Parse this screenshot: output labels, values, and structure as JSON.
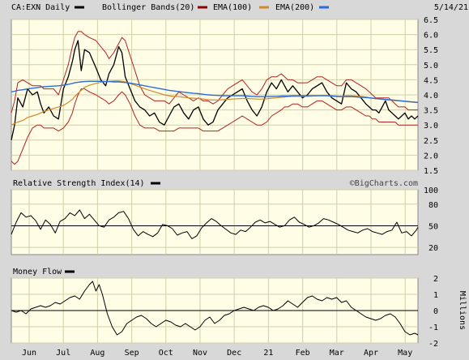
{
  "header": {
    "symbol": "CA:EXN Daily",
    "legend": [
      {
        "label": "Bollinger Bands(20)",
        "color": "#000000"
      },
      {
        "label": "EMA(100)",
        "color": "#8b0000"
      },
      {
        "label": "EMA(200)",
        "color": "#d08a2a"
      },
      {
        "label": "",
        "color": "#2a6dd8"
      }
    ],
    "date": "5/14/21"
  },
  "colors": {
    "panel_bg": "#fffde6",
    "frame_bg": "#d8d8d8",
    "grid": "#cfcfa8",
    "price": "#000000",
    "bollinger": "#b22222",
    "ema100": "#d08a2a",
    "ema200": "#2a6dd8"
  },
  "rsi_panel": {
    "title": "Relative Strength Index(14)",
    "watermark": "©BigCharts.com"
  },
  "mf_panel": {
    "title": "Money Flow",
    "unit_label": "Millions"
  },
  "chart_data": [
    {
      "type": "line",
      "name": "price",
      "title": "CA:EXN Daily",
      "ylim": [
        1.5,
        6.5
      ],
      "y_ticks": [
        "1.5",
        "2.0",
        "2.5",
        "3.0",
        "3.5",
        "4.0",
        "4.5",
        "5.0",
        "5.5",
        "6.0",
        "6.5"
      ],
      "x_ticks": [
        "Jun",
        "Jul",
        "Aug",
        "Sep",
        "Oct",
        "Nov",
        "Dec",
        "21",
        "Feb",
        "Mar",
        "Apr",
        "May"
      ],
      "x": [
        0,
        4,
        8,
        14,
        20,
        26,
        32,
        36,
        40,
        46,
        52,
        58,
        64,
        70,
        75,
        78,
        82,
        86,
        90,
        96,
        104,
        110,
        116,
        120,
        126,
        132,
        136,
        140,
        146,
        152,
        158,
        164,
        170,
        176,
        182,
        188,
        194,
        200,
        206,
        212,
        218,
        224,
        230,
        236,
        242,
        248,
        254,
        260,
        266,
        272,
        278,
        284,
        290,
        296,
        302,
        308,
        314,
        320,
        326,
        332,
        336,
        340,
        346,
        352,
        358,
        364,
        370,
        376,
        382,
        388,
        394,
        400,
        406,
        412,
        418,
        424,
        430,
        436,
        440,
        444,
        448,
        452,
        456,
        460,
        464,
        468,
        472,
        476,
        480,
        484,
        488,
        492,
        496,
        500
      ],
      "series": [
        {
          "name": "Price",
          "values": [
            2.5,
            3.0,
            3.9,
            3.6,
            4.2,
            4.0,
            4.1,
            3.7,
            3.4,
            3.6,
            3.3,
            3.2,
            4.2,
            4.6,
            5.1,
            5.5,
            5.8,
            4.8,
            5.5,
            5.4,
            4.9,
            4.5,
            4.3,
            4.7,
            5.0,
            5.6,
            5.4,
            4.6,
            4.2,
            3.8,
            3.6,
            3.5,
            3.3,
            3.4,
            3.1,
            3.0,
            3.3,
            3.6,
            3.7,
            3.4,
            3.2,
            3.5,
            3.6,
            3.2,
            3.0,
            3.1,
            3.5,
            3.7,
            3.9,
            4.0,
            4.1,
            4.2,
            3.8,
            3.5,
            3.3,
            3.6,
            4.1,
            4.4,
            4.2,
            4.5,
            4.3,
            4.1,
            4.3,
            4.1,
            3.9,
            4.0,
            4.2,
            4.3,
            4.4,
            4.1,
            3.9,
            3.8,
            3.7,
            4.4,
            4.2,
            4.1,
            3.9,
            3.7,
            3.6,
            3.5,
            3.5,
            3.4,
            3.6,
            3.8,
            3.5,
            3.4,
            3.3,
            3.2,
            3.3,
            3.4,
            3.2,
            3.3,
            3.2,
            3.3
          ]
        },
        {
          "name": "Bollinger upper",
          "values": [
            3.4,
            3.8,
            4.4,
            4.5,
            4.4,
            4.3,
            4.3,
            4.3,
            4.2,
            4.2,
            4.2,
            4.0,
            4.5,
            5.0,
            5.6,
            5.9,
            6.1,
            6.1,
            6.0,
            5.9,
            5.8,
            5.6,
            5.4,
            5.2,
            5.4,
            5.7,
            5.9,
            5.8,
            5.3,
            4.8,
            4.3,
            4.0,
            3.9,
            3.8,
            3.8,
            3.8,
            3.7,
            3.9,
            4.1,
            4.0,
            3.9,
            3.8,
            3.9,
            3.8,
            3.8,
            3.7,
            3.8,
            4.0,
            4.2,
            4.3,
            4.4,
            4.5,
            4.3,
            4.1,
            4.0,
            4.2,
            4.5,
            4.6,
            4.6,
            4.7,
            4.6,
            4.5,
            4.5,
            4.4,
            4.4,
            4.4,
            4.5,
            4.6,
            4.6,
            4.5,
            4.4,
            4.3,
            4.3,
            4.5,
            4.5,
            4.4,
            4.3,
            4.2,
            4.1,
            4.0,
            3.9,
            3.9,
            3.9,
            3.9,
            3.9,
            3.8,
            3.7,
            3.6,
            3.6,
            3.6,
            3.5,
            3.5,
            3.5,
            3.5
          ]
        },
        {
          "name": "Bollinger lower",
          "values": [
            1.8,
            1.7,
            1.8,
            2.2,
            2.6,
            2.9,
            3.0,
            3.0,
            2.9,
            2.9,
            2.9,
            2.8,
            2.9,
            3.1,
            3.4,
            3.7,
            4.0,
            4.2,
            4.2,
            4.1,
            4.0,
            3.9,
            3.8,
            3.7,
            3.8,
            4.0,
            4.1,
            4.0,
            3.7,
            3.3,
            3.0,
            2.9,
            2.9,
            2.9,
            2.8,
            2.8,
            2.8,
            2.8,
            2.9,
            2.9,
            2.9,
            2.9,
            2.9,
            2.8,
            2.8,
            2.8,
            2.8,
            2.9,
            3.0,
            3.1,
            3.2,
            3.3,
            3.2,
            3.1,
            3.0,
            3.0,
            3.1,
            3.3,
            3.4,
            3.5,
            3.6,
            3.6,
            3.7,
            3.7,
            3.6,
            3.6,
            3.7,
            3.8,
            3.8,
            3.7,
            3.6,
            3.5,
            3.5,
            3.6,
            3.6,
            3.5,
            3.4,
            3.3,
            3.3,
            3.2,
            3.2,
            3.1,
            3.1,
            3.1,
            3.1,
            3.1,
            3.1,
            3.0,
            3.0,
            3.0,
            3.0,
            3.0,
            3.0,
            3.0
          ]
        },
        {
          "name": "EMA(100)",
          "values": [
            3.0,
            3.05,
            3.1,
            3.15,
            3.25,
            3.3,
            3.35,
            3.4,
            3.45,
            3.5,
            3.55,
            3.6,
            3.65,
            3.75,
            3.85,
            3.95,
            4.05,
            4.15,
            4.25,
            4.32,
            4.38,
            4.42,
            4.44,
            4.45,
            4.46,
            4.46,
            4.45,
            4.43,
            4.38,
            4.32,
            4.26,
            4.2,
            4.15,
            4.1,
            4.05,
            4.0,
            3.97,
            3.95,
            3.94,
            3.92,
            3.9,
            3.89,
            3.88,
            3.86,
            3.84,
            3.83,
            3.83,
            3.84,
            3.85,
            3.86,
            3.87,
            3.88,
            3.88,
            3.87,
            3.86,
            3.86,
            3.87,
            3.89,
            3.9,
            3.92,
            3.93,
            3.94,
            3.95,
            3.95,
            3.95,
            3.95,
            3.96,
            3.97,
            3.98,
            3.98,
            3.97,
            3.96,
            3.95,
            3.97,
            3.97,
            3.96,
            3.95,
            3.93,
            3.91,
            3.89,
            3.87,
            3.86,
            3.85,
            3.84,
            3.83,
            3.82,
            3.81,
            3.8,
            3.79,
            3.78,
            3.77,
            3.76,
            3.75,
            3.74
          ]
        },
        {
          "name": "EMA(200)",
          "values": [
            4.1,
            4.12,
            4.15,
            4.17,
            4.2,
            4.22,
            4.24,
            4.26,
            4.27,
            4.28,
            4.29,
            4.3,
            4.32,
            4.35,
            4.38,
            4.4,
            4.42,
            4.43,
            4.44,
            4.45,
            4.45,
            4.45,
            4.44,
            4.44,
            4.43,
            4.43,
            4.42,
            4.41,
            4.39,
            4.36,
            4.33,
            4.3,
            4.27,
            4.24,
            4.21,
            4.18,
            4.15,
            4.13,
            4.11,
            4.09,
            4.07,
            4.05,
            4.04,
            4.02,
            4.0,
            3.99,
            3.98,
            3.97,
            3.97,
            3.97,
            3.97,
            3.97,
            3.96,
            3.95,
            3.94,
            3.94,
            3.94,
            3.95,
            3.95,
            3.96,
            3.96,
            3.96,
            3.97,
            3.97,
            3.97,
            3.97,
            3.97,
            3.97,
            3.97,
            3.97,
            3.96,
            3.95,
            3.94,
            3.94,
            3.94,
            3.93,
            3.92,
            3.91,
            3.9,
            3.89,
            3.88,
            3.87,
            3.86,
            3.85,
            3.84,
            3.83,
            3.82,
            3.81,
            3.8,
            3.79,
            3.78,
            3.77,
            3.76,
            3.75
          ]
        }
      ]
    },
    {
      "type": "line",
      "name": "rsi",
      "title": "Relative Strength Index(14)",
      "ylim": [
        10,
        100
      ],
      "y_ticks": [
        "100",
        "80",
        "50",
        "20"
      ],
      "reference_line": 50,
      "x": [
        0,
        6,
        12,
        18,
        24,
        30,
        36,
        42,
        48,
        54,
        60,
        66,
        72,
        78,
        84,
        90,
        96,
        102,
        108,
        114,
        120,
        126,
        132,
        138,
        144,
        150,
        156,
        162,
        168,
        174,
        180,
        186,
        192,
        198,
        204,
        210,
        216,
        222,
        228,
        234,
        240,
        246,
        252,
        258,
        264,
        270,
        276,
        282,
        288,
        294,
        300,
        306,
        312,
        318,
        324,
        330,
        336,
        342,
        348,
        354,
        360,
        366,
        372,
        378,
        384,
        390,
        396,
        402,
        408,
        414,
        420,
        426,
        432,
        438,
        444,
        450,
        456,
        462,
        468,
        474,
        480,
        486,
        492,
        498,
        500
      ],
      "series": [
        {
          "name": "RSI",
          "values": [
            38,
            55,
            68,
            62,
            64,
            57,
            45,
            58,
            52,
            40,
            56,
            60,
            68,
            64,
            72,
            60,
            66,
            58,
            50,
            48,
            58,
            62,
            68,
            70,
            60,
            45,
            36,
            42,
            38,
            35,
            40,
            52,
            50,
            46,
            37,
            40,
            42,
            32,
            36,
            47,
            54,
            60,
            56,
            50,
            45,
            40,
            38,
            44,
            42,
            48,
            55,
            58,
            54,
            56,
            52,
            48,
            50,
            58,
            62,
            55,
            52,
            48,
            50,
            54,
            60,
            58,
            55,
            52,
            48,
            44,
            42,
            40,
            44,
            46,
            42,
            40,
            38,
            42,
            44,
            55,
            40,
            42,
            36,
            44,
            48
          ]
        }
      ]
    },
    {
      "type": "line",
      "name": "money-flow",
      "title": "Money Flow",
      "ylabel": "Millions",
      "ylim": [
        -2,
        2
      ],
      "y_ticks": [
        "2",
        "1",
        "0",
        "-1",
        "-2"
      ],
      "reference_line": 0,
      "x": [
        0,
        6,
        12,
        18,
        24,
        30,
        36,
        42,
        48,
        54,
        60,
        66,
        72,
        78,
        84,
        90,
        96,
        100,
        104,
        108,
        112,
        118,
        124,
        130,
        136,
        142,
        148,
        154,
        160,
        166,
        172,
        178,
        184,
        190,
        196,
        202,
        208,
        214,
        220,
        226,
        232,
        238,
        244,
        250,
        256,
        262,
        268,
        274,
        280,
        286,
        292,
        298,
        304,
        310,
        316,
        322,
        328,
        334,
        340,
        346,
        352,
        358,
        364,
        370,
        376,
        382,
        388,
        394,
        400,
        406,
        412,
        418,
        424,
        430,
        436,
        442,
        448,
        454,
        460,
        466,
        472,
        478,
        484,
        490,
        496,
        500
      ],
      "series": [
        {
          "name": "Money Flow",
          "values": [
            0.0,
            -0.1,
            0.0,
            -0.2,
            0.1,
            0.2,
            0.3,
            0.2,
            0.3,
            0.5,
            0.4,
            0.6,
            0.8,
            0.9,
            0.7,
            1.2,
            1.6,
            1.8,
            1.2,
            1.6,
            1.0,
            -0.2,
            -1.0,
            -1.5,
            -1.3,
            -0.8,
            -0.6,
            -0.4,
            -0.3,
            -0.5,
            -0.8,
            -1.0,
            -0.8,
            -0.6,
            -0.7,
            -0.9,
            -1.0,
            -0.8,
            -1.0,
            -1.2,
            -1.0,
            -0.6,
            -0.4,
            -0.8,
            -0.6,
            -0.3,
            -0.2,
            0.0,
            0.1,
            0.2,
            0.1,
            0.0,
            0.2,
            0.3,
            0.2,
            0.0,
            0.1,
            0.3,
            0.6,
            0.4,
            0.2,
            0.5,
            0.8,
            0.9,
            0.7,
            0.6,
            0.8,
            0.7,
            0.8,
            0.5,
            0.6,
            0.2,
            0.0,
            -0.2,
            -0.4,
            -0.5,
            -0.6,
            -0.5,
            -0.3,
            -0.2,
            -0.4,
            -0.8,
            -1.3,
            -1.5,
            -1.4,
            -1.5
          ]
        }
      ]
    }
  ]
}
